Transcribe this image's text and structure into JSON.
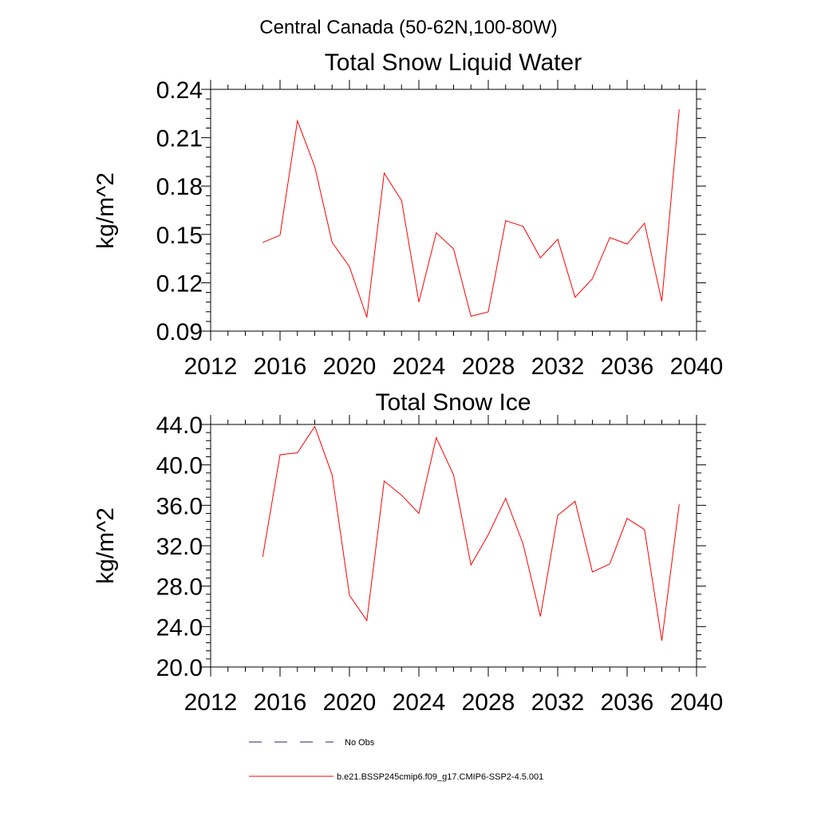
{
  "figure_title": "Central Canada (50-62N,100-80W)",
  "chart_data": [
    {
      "type": "line",
      "title": "Total Snow Liquid Water",
      "xlabel": "",
      "ylabel": "kg/m^2",
      "xlim": [
        2012,
        2040
      ],
      "ylim": [
        0.09,
        0.24
      ],
      "xticks": [
        2012,
        2016,
        2020,
        2024,
        2028,
        2032,
        2036,
        2040
      ],
      "xtick_labels": [
        "2012",
        "2016",
        "2020",
        "2024",
        "2028",
        "2032",
        "2036",
        "2040"
      ],
      "yticks": [
        0.09,
        0.12,
        0.15,
        0.18,
        0.21,
        0.24
      ],
      "ytick_labels": [
        "0.09",
        "0.12",
        "0.15",
        "0.18",
        "0.21",
        "0.24"
      ],
      "grid": false,
      "x": [
        2015,
        2016,
        2017,
        2018,
        2019,
        2020,
        2021,
        2022,
        2023,
        2024,
        2025,
        2026,
        2027,
        2028,
        2029,
        2030,
        2031,
        2032,
        2033,
        2034,
        2035,
        2036,
        2037,
        2038,
        2039
      ],
      "series": [
        {
          "name": "b.e21.BSSP245cmip6.f09_g17.CMIP6-SSP2-4.5.001",
          "color": "#ff0000",
          "values": [
            0.145,
            0.1495,
            0.2205,
            0.192,
            0.145,
            0.13,
            0.0985,
            0.188,
            0.171,
            0.108,
            0.151,
            0.141,
            0.0992,
            0.102,
            0.1585,
            0.155,
            0.1355,
            0.147,
            0.111,
            0.1225,
            0.148,
            0.144,
            0.157,
            0.1085,
            0.2275
          ]
        }
      ]
    },
    {
      "type": "line",
      "title": "Total Snow Ice",
      "xlabel": "",
      "ylabel": "kg/m^2",
      "xlim": [
        2012,
        2040
      ],
      "ylim": [
        20.0,
        44.0
      ],
      "xticks": [
        2012,
        2016,
        2020,
        2024,
        2028,
        2032,
        2036,
        2040
      ],
      "xtick_labels": [
        "2012",
        "2016",
        "2020",
        "2024",
        "2028",
        "2032",
        "2036",
        "2040"
      ],
      "yticks": [
        20.0,
        24.0,
        28.0,
        32.0,
        36.0,
        40.0,
        44.0
      ],
      "ytick_labels": [
        "20.0",
        "24.0",
        "28.0",
        "32.0",
        "36.0",
        "40.0",
        "44.0"
      ],
      "grid": false,
      "x": [
        2015,
        2016,
        2017,
        2018,
        2019,
        2020,
        2021,
        2022,
        2023,
        2024,
        2025,
        2026,
        2027,
        2028,
        2029,
        2030,
        2031,
        2032,
        2033,
        2034,
        2035,
        2036,
        2037,
        2038,
        2039
      ],
      "series": [
        {
          "name": "b.e21.BSSP245cmip6.f09_g17.CMIP6-SSP2-4.5.001",
          "color": "#ff0000",
          "values": [
            30.9,
            41.0,
            41.2,
            43.8,
            39.0,
            27.1,
            24.6,
            38.4,
            37.0,
            35.2,
            42.7,
            39.0,
            30.1,
            33.1,
            36.7,
            32.2,
            25.0,
            35.0,
            36.4,
            29.4,
            30.2,
            34.7,
            33.6,
            22.6,
            36.1
          ]
        }
      ]
    }
  ],
  "legend": {
    "placement": "bottom",
    "items": [
      {
        "label": "No Obs",
        "color": "#1f2a6b",
        "dash": true
      },
      {
        "label": "b.e21.BSSP245cmip6.f09_g17.CMIP6-SSP2-4.5.001",
        "color": "#ff0000",
        "dash": false
      }
    ]
  }
}
